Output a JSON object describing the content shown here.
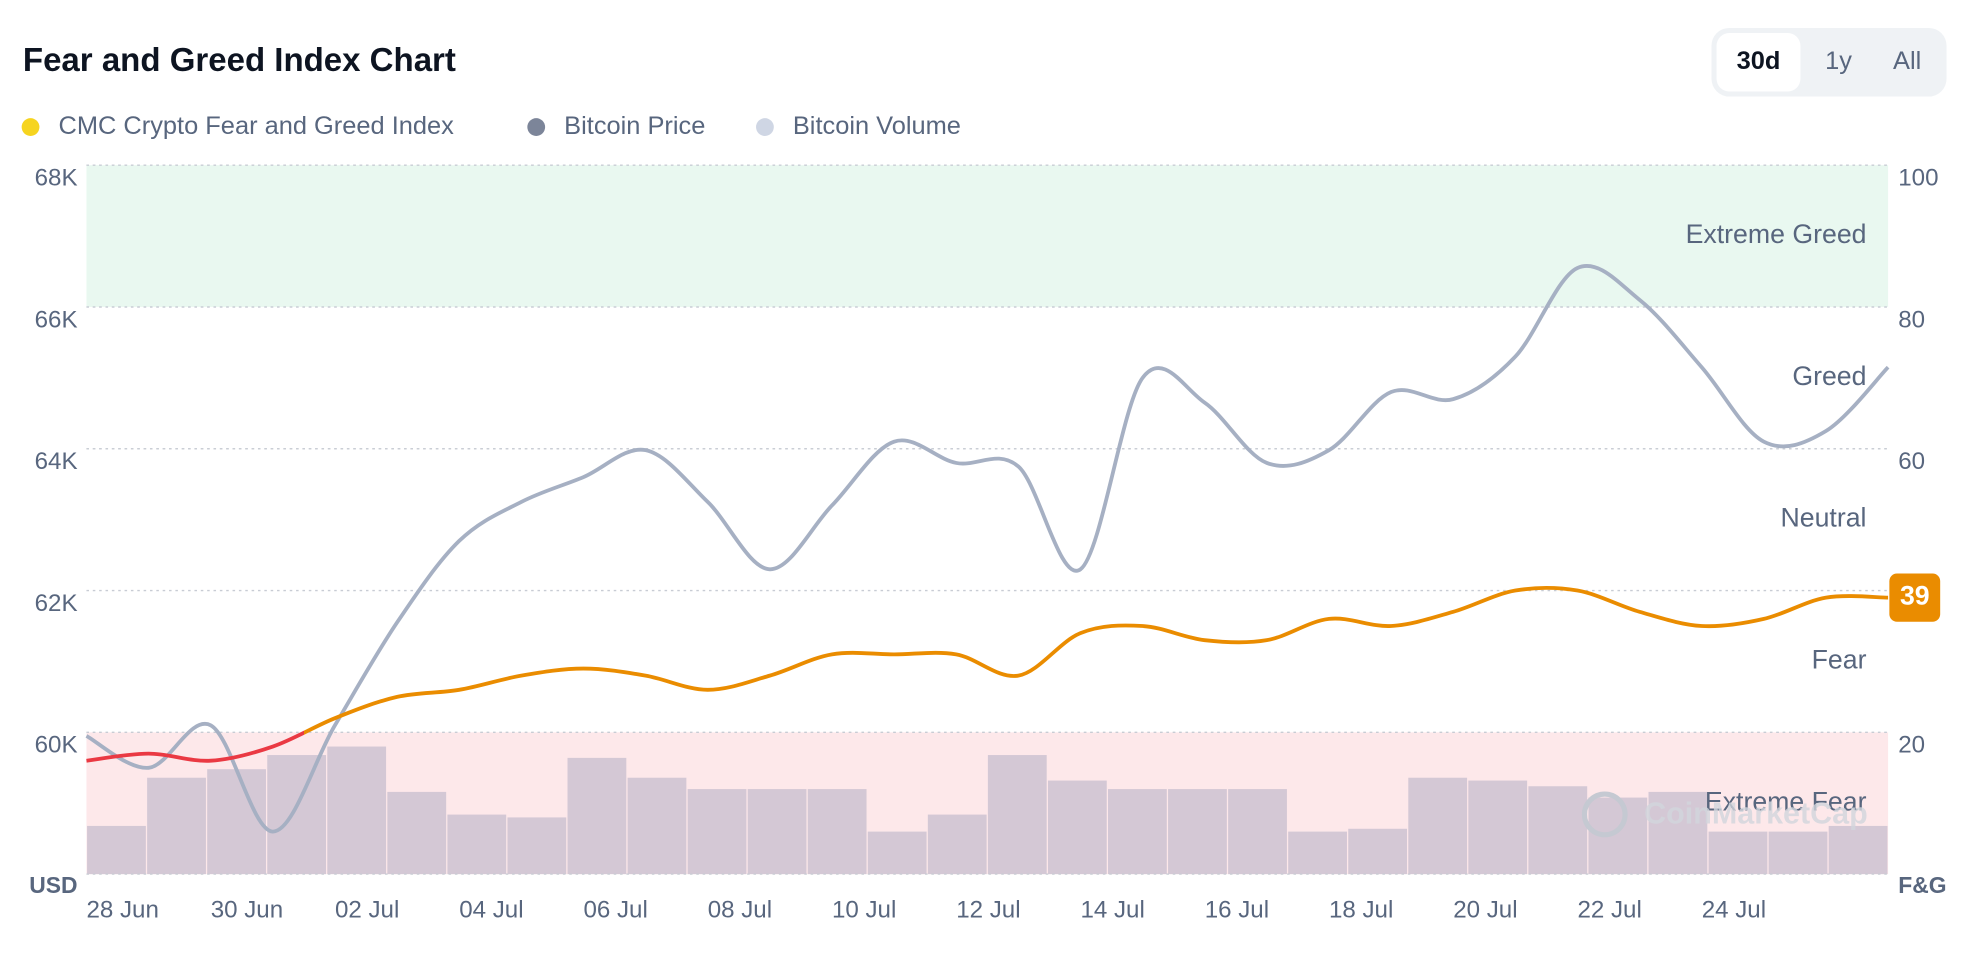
{
  "chart_data": {
    "type": "line",
    "title": "Fear and Greed Index Chart",
    "buttons": [
      "30d",
      "1y",
      "All"
    ],
    "active_button": 0,
    "watermark": "CoinMarketCap",
    "ylabel": "USD",
    "y2label": "F&G",
    "ylim": [
      58000,
      68000
    ],
    "yticks": [
      {
        "value": 60000,
        "label": "60K"
      },
      {
        "value": 62000,
        "label": "62K"
      },
      {
        "value": 64000,
        "label": "64K"
      },
      {
        "value": 66000,
        "label": "66K"
      },
      {
        "value": 68000,
        "label": "68K"
      }
    ],
    "y2lim": [
      0,
      100
    ],
    "y2ticks": [
      20,
      60,
      80,
      100
    ],
    "grid": true,
    "categories": [
      "28 Jun",
      null,
      "30 Jun",
      null,
      "02 Jul",
      null,
      "04 Jul",
      null,
      "06 Jul",
      null,
      "08 Jul",
      null,
      "10 Jul",
      null,
      "12 Jul",
      null,
      "14 Jul",
      null,
      "16 Jul",
      null,
      "18 Jul",
      null,
      "20 Jul",
      null,
      "22 Jul",
      null,
      "24 Jul",
      null,
      null,
      null
    ],
    "zones": [
      {
        "label": "Extreme Fear",
        "range": [
          0,
          20
        ],
        "color": "#fde8ea"
      },
      {
        "label": "Fear",
        "range": [
          20,
          40
        ]
      },
      {
        "label": "Neutral",
        "range": [
          40,
          60
        ]
      },
      {
        "label": "Greed",
        "range": [
          60,
          80
        ]
      },
      {
        "label": "Extreme Greed",
        "range": [
          80,
          100
        ],
        "color": "#e9f8f0"
      }
    ],
    "series": [
      {
        "name": "CMC Crypto Fear and Greed Index",
        "axis": "y2",
        "color": "#ea8c00",
        "fear_color": "#ea3943",
        "legend_color": "#f6d41f",
        "values": [
          16,
          17,
          16,
          18,
          22,
          25,
          26,
          28,
          29,
          28,
          26,
          28,
          31,
          31,
          31,
          28,
          34,
          35,
          33,
          33,
          36,
          35,
          37,
          40,
          40,
          37,
          35,
          36,
          39,
          39
        ]
      },
      {
        "name": "Bitcoin Price",
        "axis": "y",
        "color": "#a6b0c3",
        "legend_color": "#7c8599",
        "values": [
          59950,
          59500,
          60100,
          58600,
          60100,
          61550,
          62700,
          63250,
          63600,
          63980,
          63250,
          62300,
          63200,
          64100,
          63800,
          63750,
          62300,
          65000,
          64650,
          63800,
          63980,
          64800,
          64700,
          65300,
          66550,
          66100,
          65150,
          64100,
          64250,
          65150
        ]
      },
      {
        "name": "Bitcoin Volume",
        "type": "bar",
        "color": "#c9bfd0",
        "legend_color": "#cfd6e4",
        "ylim": [
          0,
          250
        ],
        "values": [
          17,
          34,
          37,
          42,
          45,
          29,
          21,
          20,
          41,
          34,
          30,
          30,
          30,
          15,
          21,
          42,
          33,
          30,
          30,
          30,
          15,
          16,
          34,
          33,
          31,
          27,
          29,
          15,
          15,
          17
        ]
      }
    ]
  }
}
